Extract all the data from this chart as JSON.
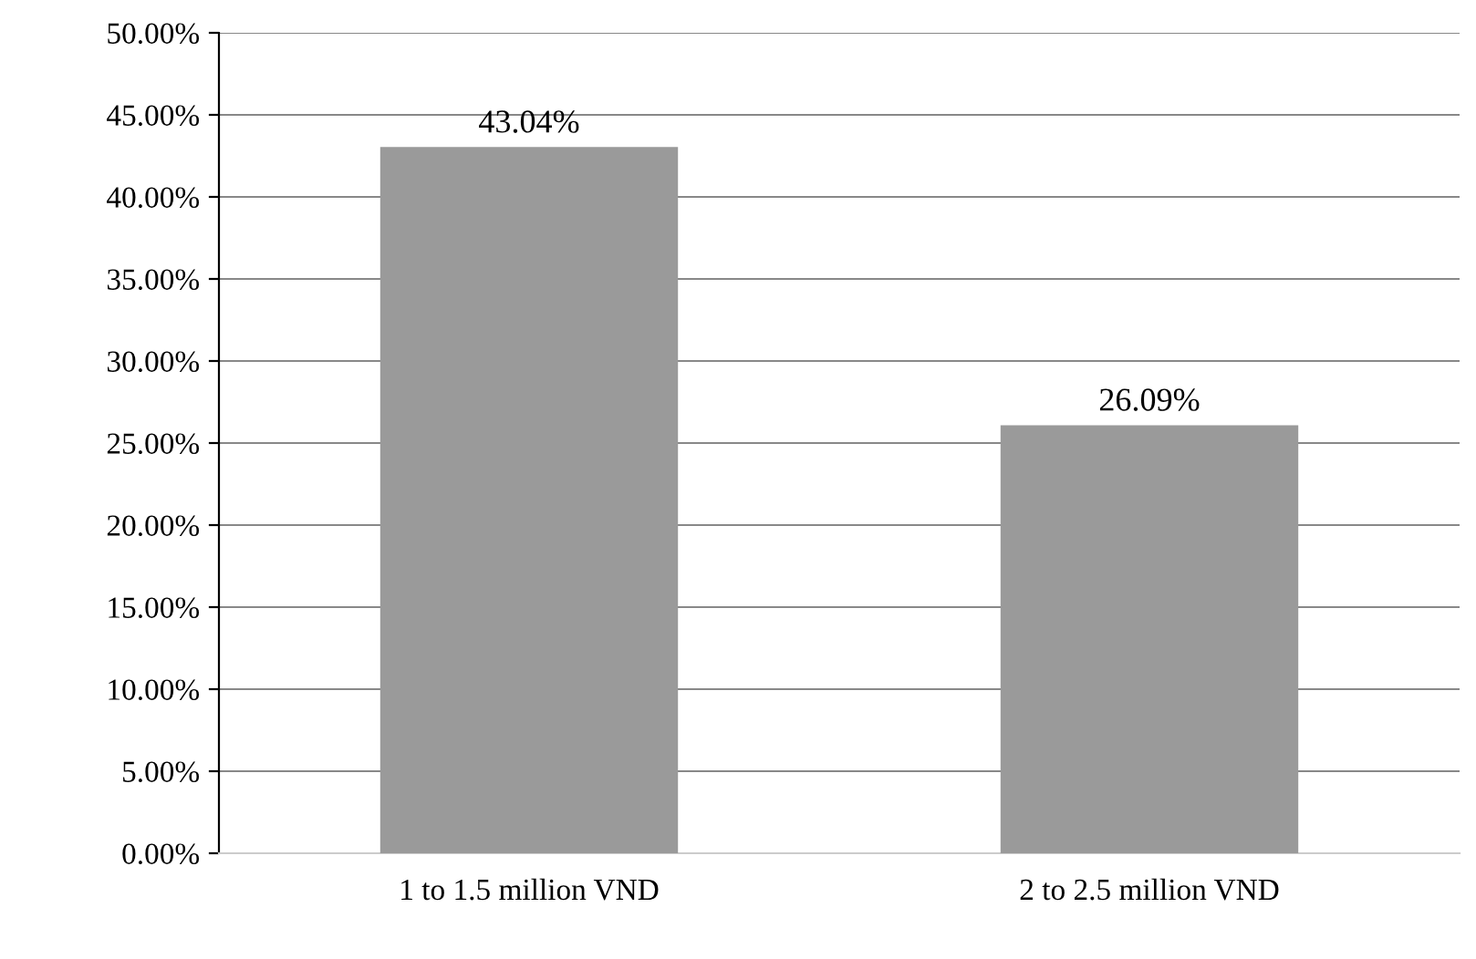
{
  "chart_data": {
    "type": "bar",
    "categories": [
      "1 to 1.5 million VND",
      "2 to 2.5 million VND"
    ],
    "values": [
      43.04,
      26.09
    ],
    "color": "#9a9a9a",
    "value_labels": [
      "43.04%",
      "26.09%"
    ],
    "ylim": [
      0,
      50
    ],
    "yticks": [
      {
        "value": 0,
        "label": "0.00%"
      },
      {
        "value": 5,
        "label": "5.00%"
      },
      {
        "value": 10,
        "label": "10.00%"
      },
      {
        "value": 15,
        "label": "15.00%"
      },
      {
        "value": 20,
        "label": "20.00%"
      },
      {
        "value": 25,
        "label": "25.00%"
      },
      {
        "value": 30,
        "label": "30.00%"
      },
      {
        "value": 35,
        "label": "35.00%"
      },
      {
        "value": 40,
        "label": "40.00%"
      },
      {
        "value": 45,
        "label": "45.00%"
      },
      {
        "value": 50,
        "label": "50.00%"
      }
    ],
    "grid": "y"
  }
}
